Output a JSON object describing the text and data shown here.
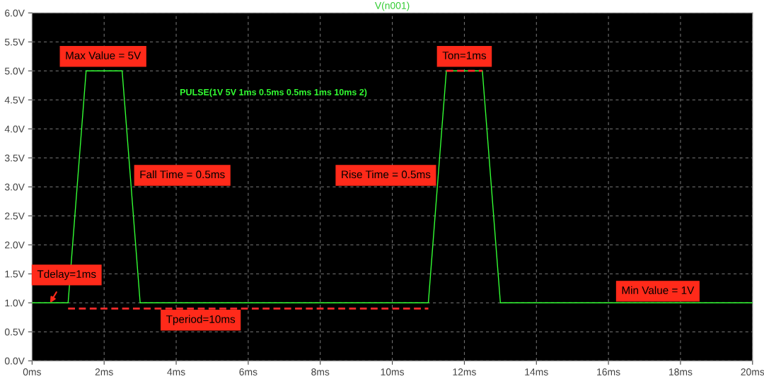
{
  "chart_data": {
    "type": "line",
    "title": "V(n001)",
    "subtitle": "PULSE(1V 5V 1ms 0.5ms 0.5ms 1ms 10ms 2)",
    "series": [
      {
        "color": "#33ff33",
        "x": [
          0,
          1,
          1.5,
          2.5,
          3,
          11,
          11.5,
          12.5,
          13,
          20
        ],
        "values": [
          1,
          1,
          5,
          5,
          1,
          1,
          5,
          5,
          1,
          1
        ]
      },
      {
        "color": "#ff2a2a",
        "line_style": "dashed",
        "x": [
          1,
          11
        ],
        "values": [
          0.9,
          0.9
        ]
      },
      {
        "color": "#ff2a2a",
        "line_style": "dashed",
        "x": [
          11.5,
          12.5
        ],
        "values": [
          5,
          5
        ]
      }
    ],
    "annotations": [
      "Max Value = 5V",
      "Fall Time = 0.5ms",
      "Rise Time = 0.5ms",
      "Ton=1ms",
      {
        "text": "Tdelay=1ms",
        "x": 0.5,
        "y": 1.0
      },
      "Min Value = 1V",
      "Tperiod=10ms"
    ],
    "xlim": [
      0,
      20
    ],
    "ylim": [
      0,
      6
    ],
    "xticks": [
      {
        "value": 0,
        "label": "0ms"
      },
      {
        "value": 2,
        "label": "2ms"
      },
      {
        "value": 4,
        "label": "4ms"
      },
      {
        "value": 6,
        "label": "6ms"
      },
      {
        "value": 8,
        "label": "8ms"
      },
      {
        "value": 10,
        "label": "10ms"
      },
      {
        "value": 12,
        "label": "12ms"
      },
      {
        "value": 14,
        "label": "14ms"
      },
      {
        "value": 16,
        "label": "16ms"
      },
      {
        "value": 18,
        "label": "18ms"
      },
      {
        "value": 20,
        "label": "20ms"
      }
    ],
    "yticks": [
      {
        "value": 0,
        "label": "0.0V"
      },
      {
        "value": 0.5,
        "label": "0.5V"
      },
      {
        "value": 1,
        "label": "1.0V"
      },
      {
        "value": 1.5,
        "label": "1.5V"
      },
      {
        "value": 2,
        "label": "2.0V"
      },
      {
        "value": 2.5,
        "label": "2.5V"
      },
      {
        "value": 3,
        "label": "3.0V"
      },
      {
        "value": 3.5,
        "label": "3.5V"
      },
      {
        "value": 4,
        "label": "4.0V"
      },
      {
        "value": 4.5,
        "label": "4.5V"
      },
      {
        "value": 5,
        "label": "5.0V"
      },
      {
        "value": 5.5,
        "label": "5.5V"
      },
      {
        "value": 6,
        "label": "6.0V"
      }
    ],
    "grid": true,
    "legend": false,
    "marker": "none",
    "line_style": "solid"
  }
}
